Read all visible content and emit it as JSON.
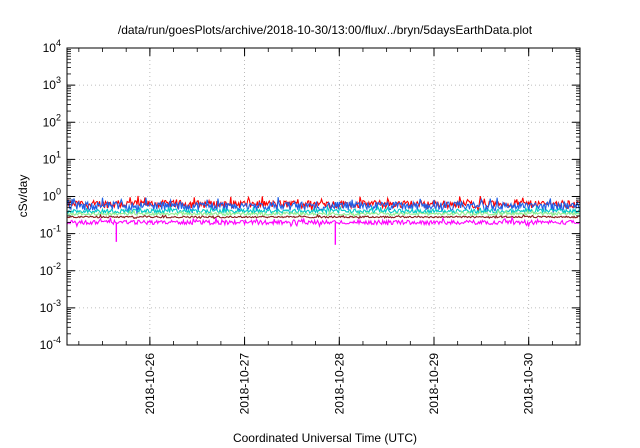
{
  "chart_data": {
    "type": "line",
    "title": "/data/run/goesPlots/archive/2018-10-30/13:00/flux/../bryn/5daysEarthData.plot",
    "xlabel": "Coordinated Universal Time (UTC)",
    "ylabel": "cSv/day",
    "y_scale": "log",
    "ylim": [
      0.0001,
      10000
    ],
    "xlim": [
      "2018-10-25 03:00",
      "2018-10-30 13:00"
    ],
    "grid": true,
    "legend": "none",
    "y_ticks": [
      {
        "base": "10",
        "exp": "-4"
      },
      {
        "base": "10",
        "exp": "-3"
      },
      {
        "base": "10",
        "exp": "-2"
      },
      {
        "base": "10",
        "exp": "-1"
      },
      {
        "base": "10",
        "exp": "0"
      },
      {
        "base": "10",
        "exp": "1"
      },
      {
        "base": "10",
        "exp": "2"
      },
      {
        "base": "10",
        "exp": "3"
      },
      {
        "base": "10",
        "exp": "4"
      }
    ],
    "x_ticks": [
      {
        "label": "2018-10-26",
        "date": "2018-10-26 00:00"
      },
      {
        "label": "2018-10-27",
        "date": "2018-10-27 00:00"
      },
      {
        "label": "2018-10-28",
        "date": "2018-10-28 00:00"
      },
      {
        "label": "2018-10-29",
        "date": "2018-10-29 00:00"
      },
      {
        "label": "2018-10-30",
        "date": "2018-10-30 00:00"
      }
    ],
    "series": [
      {
        "color": "#ff0000",
        "typical": 0.62,
        "spread": 0.22
      },
      {
        "color": "#1e5fe6",
        "typical": 0.55,
        "spread": 0.25
      },
      {
        "color": "#00c8c8",
        "typical": 0.4,
        "spread": 0.12
      },
      {
        "color": "#90ee90",
        "typical": 0.34,
        "spread": 0.08
      },
      {
        "color": "#8b1a1a",
        "typical": 0.28,
        "spread": 0.05
      },
      {
        "color": "#ff00ff",
        "typical": 0.2,
        "spread": 0.12
      }
    ],
    "dips": [
      {
        "date": "2018-10-25 15:30",
        "value": 0.06
      },
      {
        "date": "2018-10-27 23:00",
        "value": 0.05
      }
    ]
  }
}
